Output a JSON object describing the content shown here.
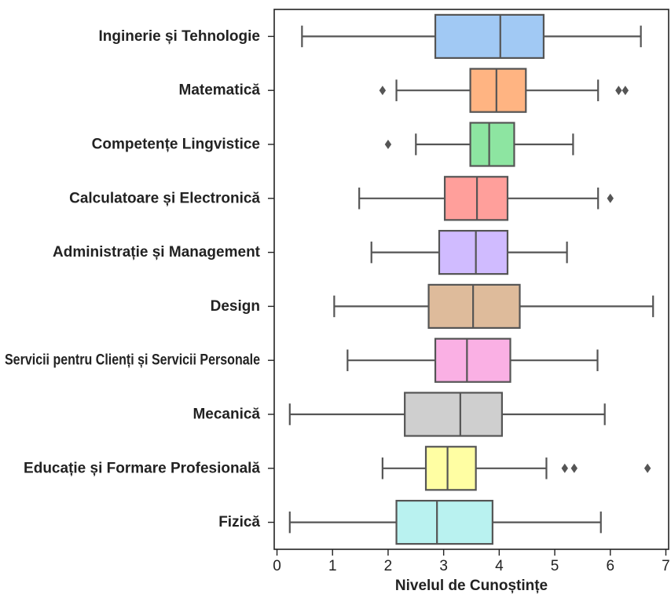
{
  "chart_data": {
    "type": "box",
    "orientation": "horizontal",
    "title": "",
    "xlabel": "Nivelul de Cunoștințe",
    "ylabel": "",
    "xlim": [
      -0.05,
      7.05
    ],
    "xticks": [
      0,
      1,
      2,
      3,
      4,
      5,
      6,
      7
    ],
    "grid": false,
    "line_color": "#555555",
    "categories": [
      {
        "name": "Inginerie și Tehnologie",
        "color": "#a1c9f4",
        "whisker_low": 0.45,
        "q1": 2.85,
        "median": 4.02,
        "q3": 4.8,
        "whisker_high": 6.55,
        "outliers": []
      },
      {
        "name": "Matematică",
        "color": "#ffb482",
        "whisker_low": 2.15,
        "q1": 3.48,
        "median": 3.95,
        "q3": 4.48,
        "whisker_high": 5.78,
        "outliers": [
          1.9,
          6.15,
          6.27
        ]
      },
      {
        "name": "Competențe Lingvistice",
        "color": "#8de5a1",
        "whisker_low": 2.5,
        "q1": 3.48,
        "median": 3.82,
        "q3": 4.27,
        "whisker_high": 5.33,
        "outliers": [
          2.0
        ]
      },
      {
        "name": "Calculatoare și Electronică",
        "color": "#ff9f9b",
        "whisker_low": 1.48,
        "q1": 3.02,
        "median": 3.6,
        "q3": 4.15,
        "whisker_high": 5.78,
        "outliers": [
          6.0
        ]
      },
      {
        "name": "Administrație și Management",
        "color": "#d0bbff",
        "whisker_low": 1.7,
        "q1": 2.92,
        "median": 3.58,
        "q3": 4.15,
        "whisker_high": 5.22,
        "outliers": []
      },
      {
        "name": "Design",
        "color": "#debb9b",
        "whisker_low": 1.03,
        "q1": 2.73,
        "median": 3.53,
        "q3": 4.37,
        "whisker_high": 6.77,
        "outliers": []
      },
      {
        "name": "Servicii pentru Clienți și Servicii Personale",
        "color": "#fab0e4",
        "whisker_low": 1.27,
        "q1": 2.85,
        "median": 3.42,
        "q3": 4.2,
        "whisker_high": 5.77,
        "outliers": []
      },
      {
        "name": "Mecanică",
        "color": "#cfcfcf",
        "whisker_low": 0.23,
        "q1": 2.3,
        "median": 3.3,
        "q3": 4.05,
        "whisker_high": 5.9,
        "outliers": []
      },
      {
        "name": "Educație și Formare Profesională",
        "color": "#fffea3",
        "whisker_low": 1.9,
        "q1": 2.68,
        "median": 3.07,
        "q3": 3.58,
        "whisker_high": 4.85,
        "outliers": [
          5.18,
          5.35,
          6.67
        ]
      },
      {
        "name": "Fizică",
        "color": "#b9f2f0",
        "whisker_low": 0.23,
        "q1": 2.15,
        "median": 2.88,
        "q3": 3.88,
        "whisker_high": 5.83,
        "outliers": []
      }
    ]
  }
}
